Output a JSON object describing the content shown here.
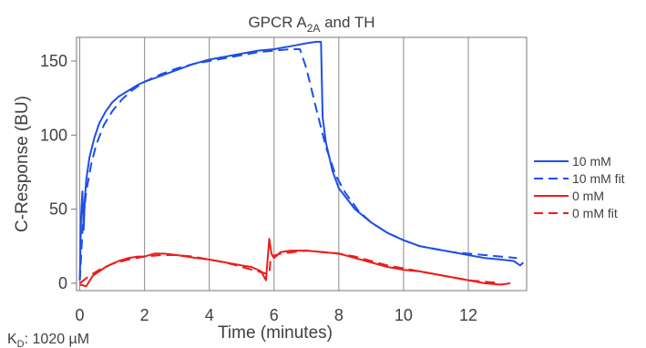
{
  "chart_data": {
    "type": "line",
    "title": "GPCR A",
    "title_sub": "2A",
    "title_suffix": " and TH",
    "xlabel": "Time (minutes)",
    "ylabel": "C-Response (BU)",
    "xlim": [
      -0.1,
      13.8
    ],
    "ylim": [
      -5,
      166
    ],
    "xticks": [
      0,
      2,
      4,
      6,
      8,
      10,
      12
    ],
    "yticks": [
      0,
      50,
      100,
      150
    ],
    "grid": "vertical",
    "legend_position": "right",
    "annotation": {
      "prefix": "K",
      "sub": "D",
      "text": ": 1020 µM"
    },
    "series": [
      {
        "name": "10 mM",
        "color": "#1f4fe8",
        "dash": false,
        "x": [
          0.0,
          0.04,
          0.08,
          0.12,
          0.16,
          0.2,
          0.3,
          0.45,
          0.6,
          0.8,
          1.0,
          1.2,
          1.5,
          1.8,
          2.0,
          2.5,
          3.0,
          3.5,
          4.0,
          4.5,
          5.0,
          5.5,
          6.0,
          6.5,
          7.0,
          7.3,
          7.45,
          7.5,
          7.6,
          7.8,
          8.0,
          8.5,
          9.0,
          9.5,
          10.0,
          10.5,
          11.0,
          11.5,
          12.0,
          12.5,
          13.0,
          13.4,
          13.6,
          13.7
        ],
        "y": [
          2,
          45,
          62,
          36,
          58,
          70,
          85,
          98,
          108,
          116,
          122,
          126,
          130,
          134,
          136,
          140,
          144,
          148,
          151,
          153,
          155,
          157,
          158,
          160,
          162,
          163,
          163,
          112,
          95,
          76,
          64,
          50,
          41,
          34,
          29,
          25,
          23,
          21,
          19,
          17,
          16,
          15,
          12,
          14
        ]
      },
      {
        "name": "10 mM fit",
        "color": "#1f4fe8",
        "dash": true,
        "x": [
          0.0,
          0.1,
          0.2,
          0.35,
          0.5,
          0.75,
          1.0,
          1.3,
          1.6,
          2.0,
          2.5,
          3.0,
          3.5,
          4.0,
          4.5,
          5.0,
          5.5,
          6.0,
          6.5,
          6.8,
          7.0,
          7.3,
          7.6,
          7.9,
          8.2,
          8.6,
          9.0,
          9.5,
          10.0,
          10.5,
          11.0,
          11.5,
          12.0,
          12.5,
          13.0,
          13.5
        ],
        "y": [
          2,
          42,
          62,
          80,
          93,
          107,
          116,
          124,
          130,
          136,
          141,
          145,
          148,
          150,
          152,
          154,
          156,
          157,
          158,
          158,
          145,
          118,
          92,
          73,
          61,
          49,
          41,
          34,
          29,
          25,
          23,
          21,
          20,
          19,
          18,
          17
        ]
      },
      {
        "name": "0 mM",
        "color": "#ee1c1c",
        "dash": false,
        "x": [
          0.0,
          0.2,
          0.4,
          0.6,
          0.8,
          1.0,
          1.2,
          1.5,
          1.8,
          2.0,
          2.3,
          2.6,
          3.0,
          3.3,
          3.6,
          4.0,
          4.5,
          5.0,
          5.3,
          5.6,
          5.75,
          5.85,
          5.92,
          6.0,
          6.2,
          6.5,
          7.0,
          7.5,
          8.0,
          8.5,
          9.0,
          9.5,
          10.0,
          10.5,
          11.0,
          11.5,
          12.0,
          12.5,
          13.0,
          13.3
        ],
        "y": [
          -1,
          -2,
          5,
          8,
          11,
          13,
          15,
          17,
          18,
          18,
          20,
          20,
          19,
          18,
          17,
          16,
          14,
          12,
          11,
          8,
          2,
          30,
          20,
          17,
          21,
          22,
          22,
          21,
          20,
          17,
          14,
          11,
          9,
          8,
          6,
          4,
          2,
          0,
          -1,
          0
        ]
      },
      {
        "name": "0 mM fit",
        "color": "#ee1c1c",
        "dash": true,
        "x": [
          0.0,
          0.3,
          0.6,
          1.0,
          1.5,
          2.0,
          2.5,
          3.0,
          3.5,
          4.0,
          4.5,
          5.0,
          5.5,
          5.85,
          5.9,
          6.2,
          6.6,
          7.0,
          7.5,
          8.0,
          8.5,
          9.0,
          9.5,
          10.0,
          10.5,
          11.0,
          11.5,
          12.0,
          12.5,
          13.0
        ],
        "y": [
          0,
          5,
          9,
          13,
          16,
          18,
          19,
          19,
          18,
          16,
          14,
          11,
          8,
          6,
          18,
          20,
          21,
          22,
          21,
          20,
          18,
          15,
          12,
          10,
          8,
          6,
          4,
          2,
          1,
          0
        ]
      }
    ]
  }
}
